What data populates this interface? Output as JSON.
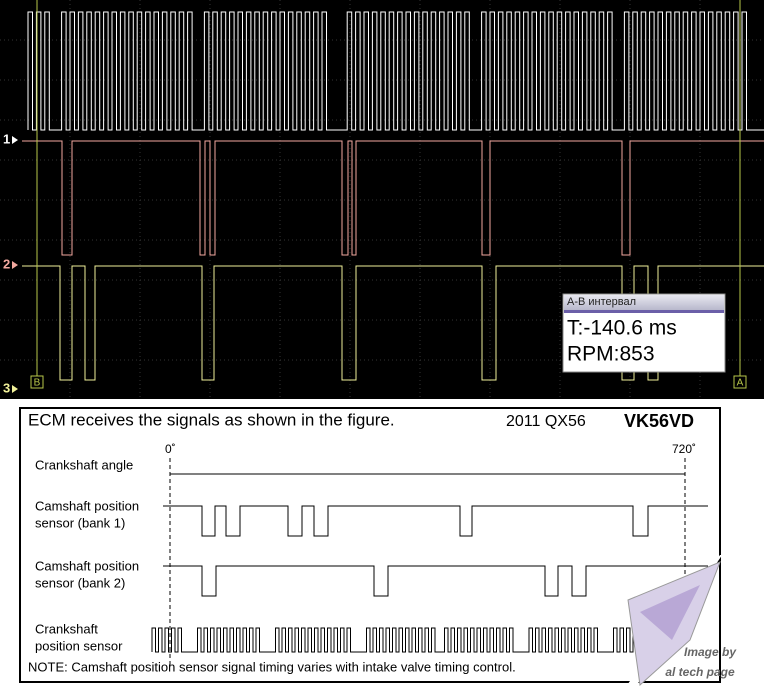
{
  "scope": {
    "channels": [
      "1",
      "2",
      "3"
    ],
    "cursor_b": "B",
    "cursor_a": "A",
    "readout": {
      "title": "A-B интервал",
      "time": "T:-140.6 ms",
      "rpm": "RPM:853"
    }
  },
  "figure": {
    "title": "ECM receives the signals as shown in the figure.",
    "model": "2011 QX56",
    "engine": "VK56VD",
    "angle_start": "0˚",
    "angle_end": "720˚",
    "labels": [
      [
        "Crankshaft angle"
      ],
      [
        "Camshaft position",
        "sensor (bank 1)"
      ],
      [
        "Camshaft position",
        "sensor (bank 2)"
      ],
      [
        "Crankshaft",
        "position sensor"
      ]
    ],
    "note": "NOTE: Camshaft position sensor signal timing varies with intake valve timing control.",
    "credit": [
      "Image by",
      "al tech page"
    ]
  }
}
